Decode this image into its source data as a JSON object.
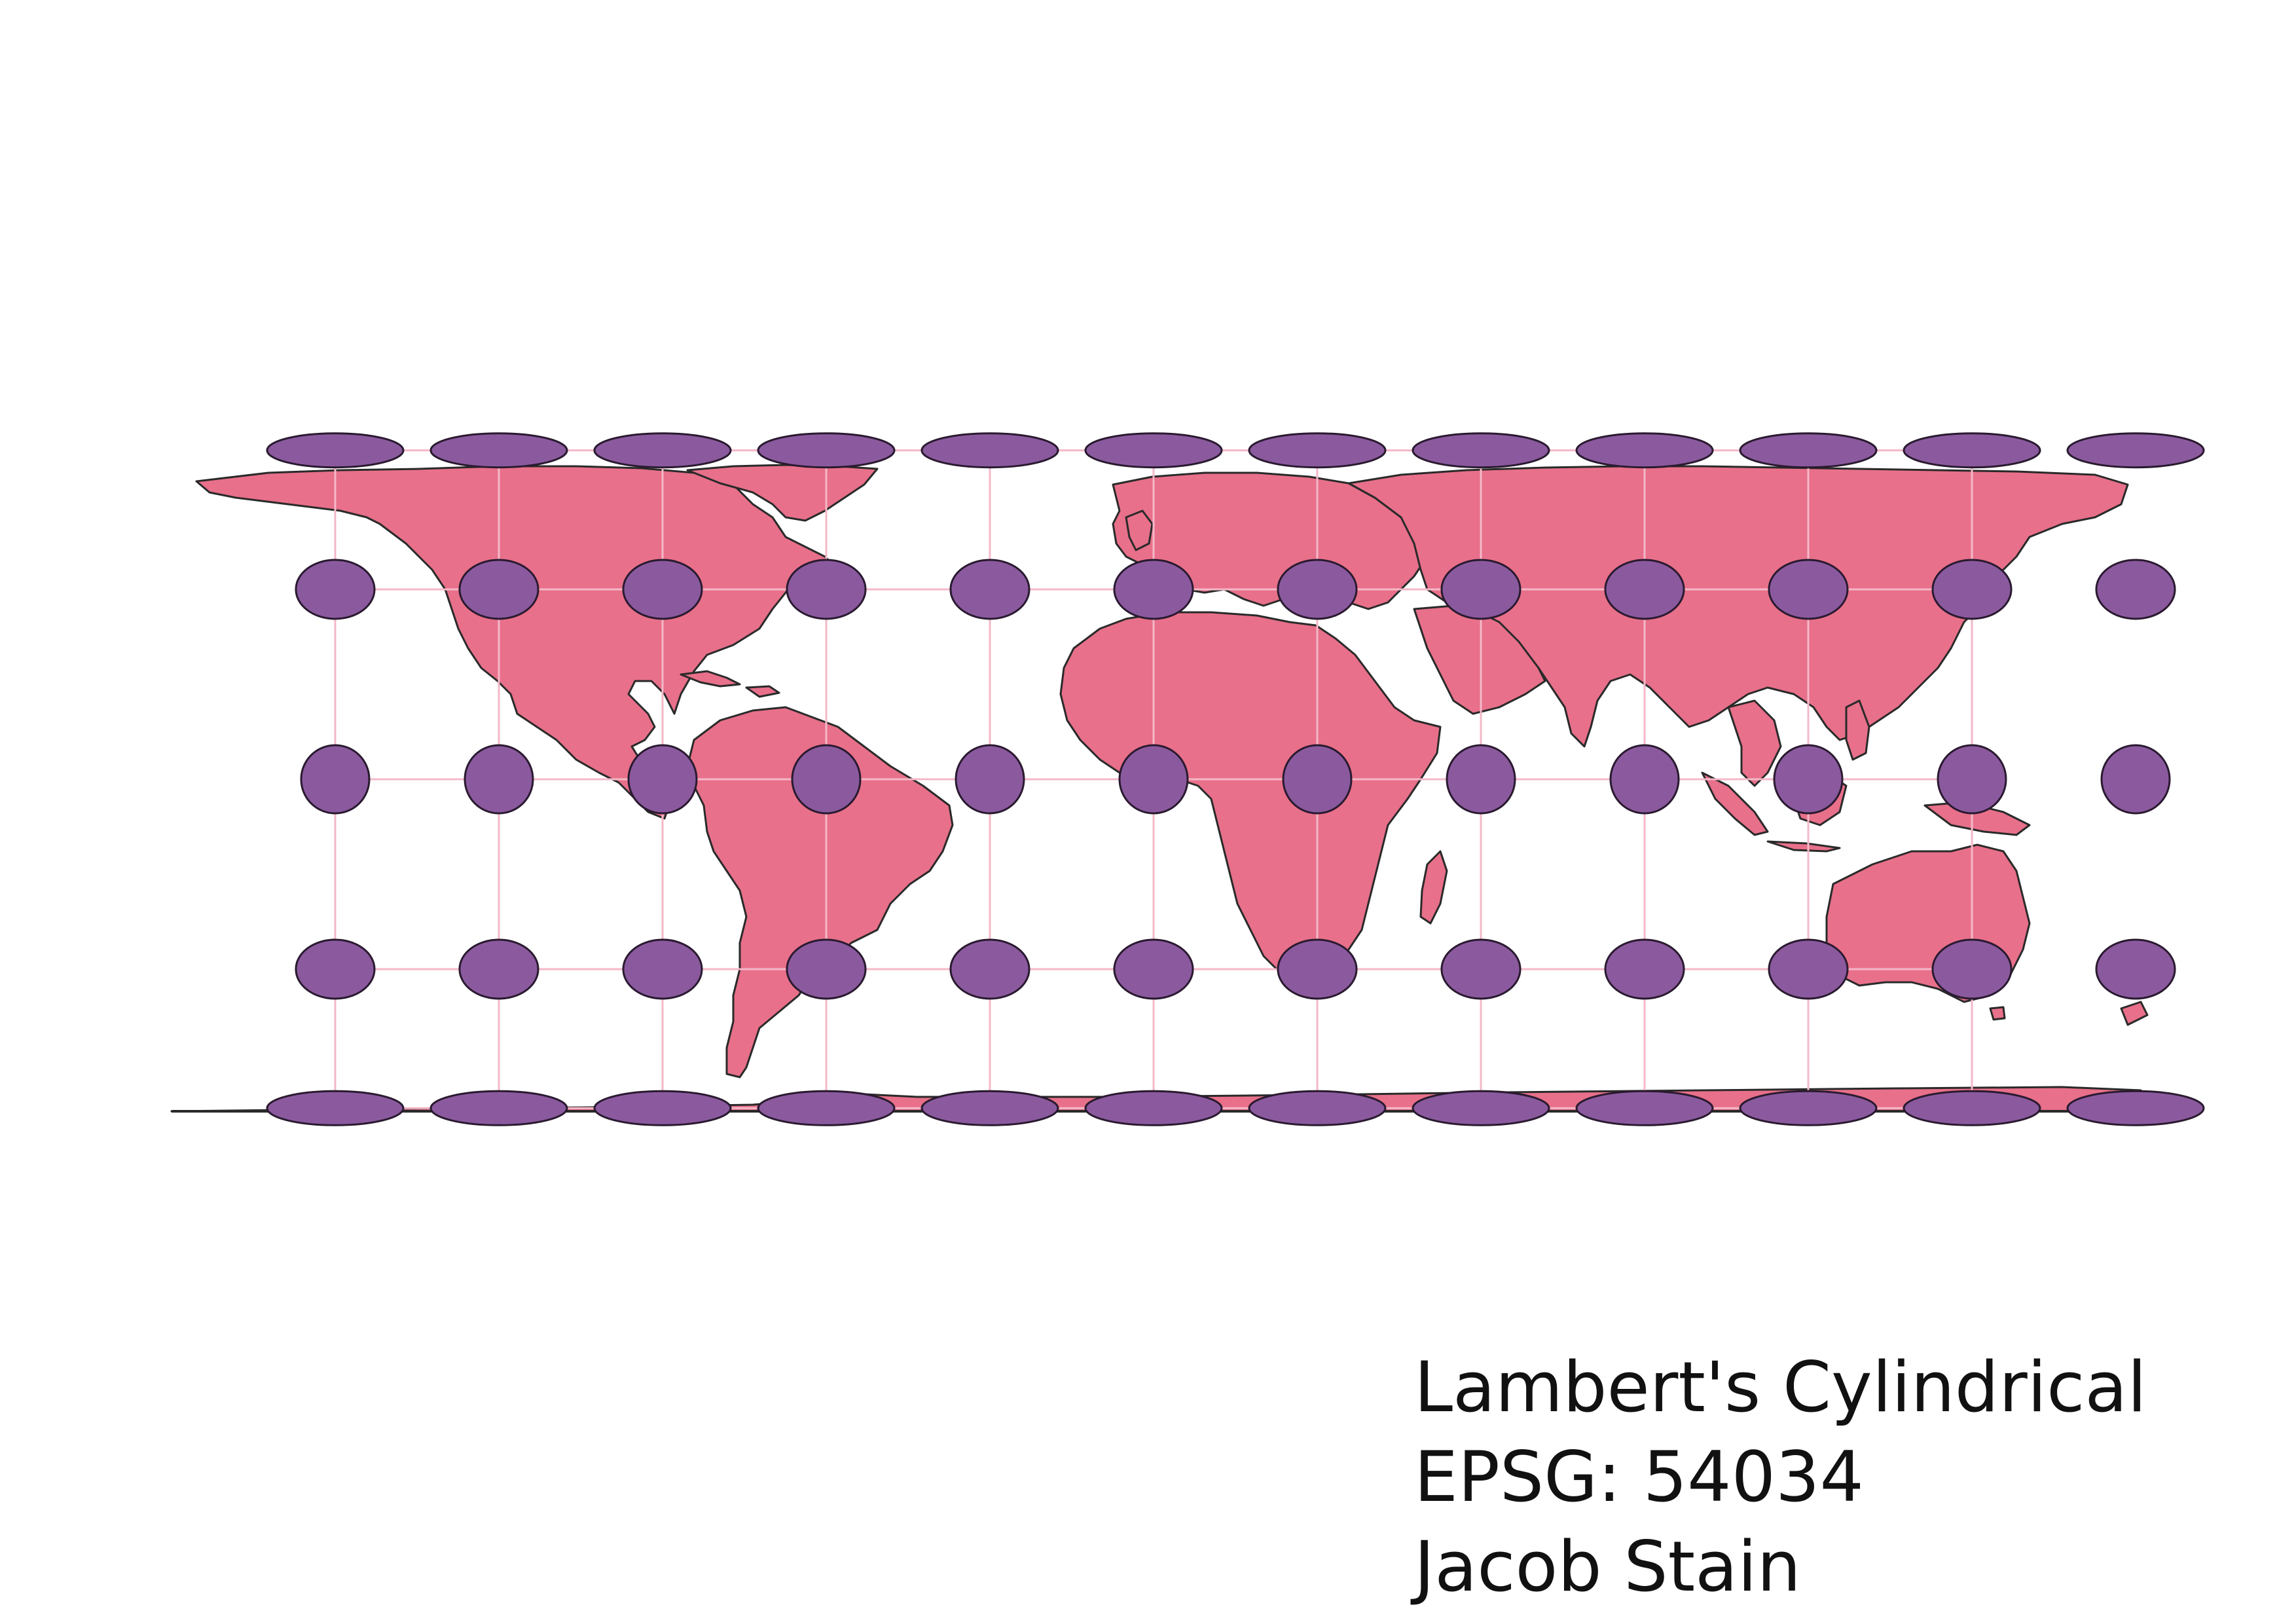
{
  "map": {
    "projection_name": "Lambert's Cylindrical",
    "epsg_label": "EPSG: 54034",
    "author": "Jacob Stain",
    "colors": {
      "land": "#e8708a",
      "land_border": "#2a2a2a",
      "tissot_fill": "#8b5a9e",
      "tissot_border": "#2a1a30",
      "graticule": "#f4b8c8",
      "background": "#ffffff"
    },
    "graticule": {
      "lon_degrees": [
        -150,
        -120,
        -90,
        -60,
        -30,
        0,
        30,
        60,
        90,
        120,
        150
      ],
      "lat_degrees": [
        -60,
        -30,
        0,
        30,
        60
      ]
    },
    "tissot_indicatrix": {
      "lon_degrees": [
        -180,
        -150,
        -120,
        -90,
        -60,
        -30,
        0,
        30,
        60,
        90,
        120,
        150
      ],
      "lat_degrees": [
        -60,
        -30,
        0,
        30,
        60
      ]
    }
  }
}
